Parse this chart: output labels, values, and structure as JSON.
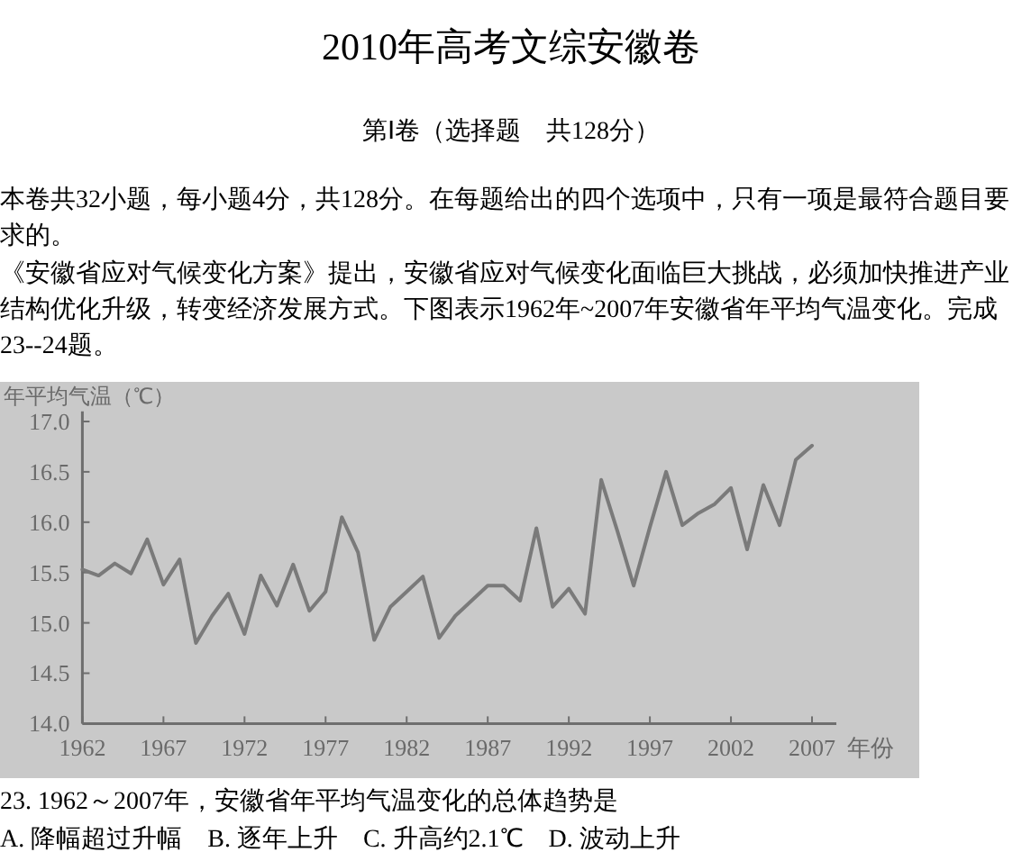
{
  "chart_data": {
    "type": "line",
    "title": "2010年高考文综安徽卷",
    "subtitle": "第Ⅰ卷（选择题　共128分）",
    "annotations": [
      "本卷共32小题，每小题4分，共128分。在每题给出的四个选项中，只有一项是最符合题目要求的。",
      "《安徽省应对气候变化方案》提出，安徽省应对气候变化面临巨大挑战，必须加快推进产业结构优化升级，转变经济发展方式。下图表示1962年~2007年安徽省年平均气温变化。完成23--24题。",
      "23. 1962～2007年，安徽省年平均气温变化的总体趋势是",
      "A. 降幅超过升幅　B. 逐年上升　C. 升高约2.1℃　D. 波动上升"
    ],
    "xlabel": "年份",
    "ylabel": "年平均气温（℃）",
    "x": [
      1962,
      1963,
      1964,
      1965,
      1966,
      1967,
      1968,
      1969,
      1970,
      1971,
      1972,
      1973,
      1974,
      1975,
      1976,
      1977,
      1978,
      1979,
      1980,
      1981,
      1982,
      1983,
      1984,
      1985,
      1986,
      1987,
      1988,
      1989,
      1990,
      1991,
      1992,
      1993,
      1994,
      1995,
      1996,
      1997,
      1998,
      1999,
      2000,
      2001,
      2002,
      2003,
      2004,
      2005,
      2006,
      2007
    ],
    "series": [
      {
        "color": "#7a7a7a",
        "values": [
          15.53,
          15.47,
          15.59,
          15.49,
          15.83,
          15.38,
          15.63,
          14.8,
          15.07,
          15.29,
          14.89,
          15.47,
          15.17,
          15.58,
          15.12,
          15.31,
          16.05,
          15.7,
          14.83,
          15.16,
          15.31,
          15.46,
          14.85,
          15.07,
          15.22,
          15.37,
          15.37,
          15.22,
          15.94,
          15.16,
          15.34,
          15.09,
          16.42,
          15.91,
          15.37,
          15.95,
          16.5,
          15.97,
          16.09,
          16.18,
          16.34,
          15.73,
          16.37,
          15.97,
          16.62,
          16.76
        ]
      }
    ],
    "xlim": [
      1962,
      2008.5
    ],
    "xticks": [
      1962,
      1967,
      1972,
      1977,
      1982,
      1987,
      1992,
      1997,
      2002,
      2007
    ],
    "ylim": [
      14,
      17.1
    ],
    "yticks": [
      {
        "value": 14,
        "label": "14.0"
      },
      {
        "value": 14.5,
        "label": "14.5"
      },
      {
        "value": 15,
        "label": "15.0"
      },
      {
        "value": 15.5,
        "label": "15.5"
      },
      {
        "value": 16,
        "label": "16.0"
      },
      {
        "value": 16.5,
        "label": "16.5"
      },
      {
        "value": 17,
        "label": "17.0"
      }
    ],
    "marker": "none",
    "line_style": "solid"
  }
}
